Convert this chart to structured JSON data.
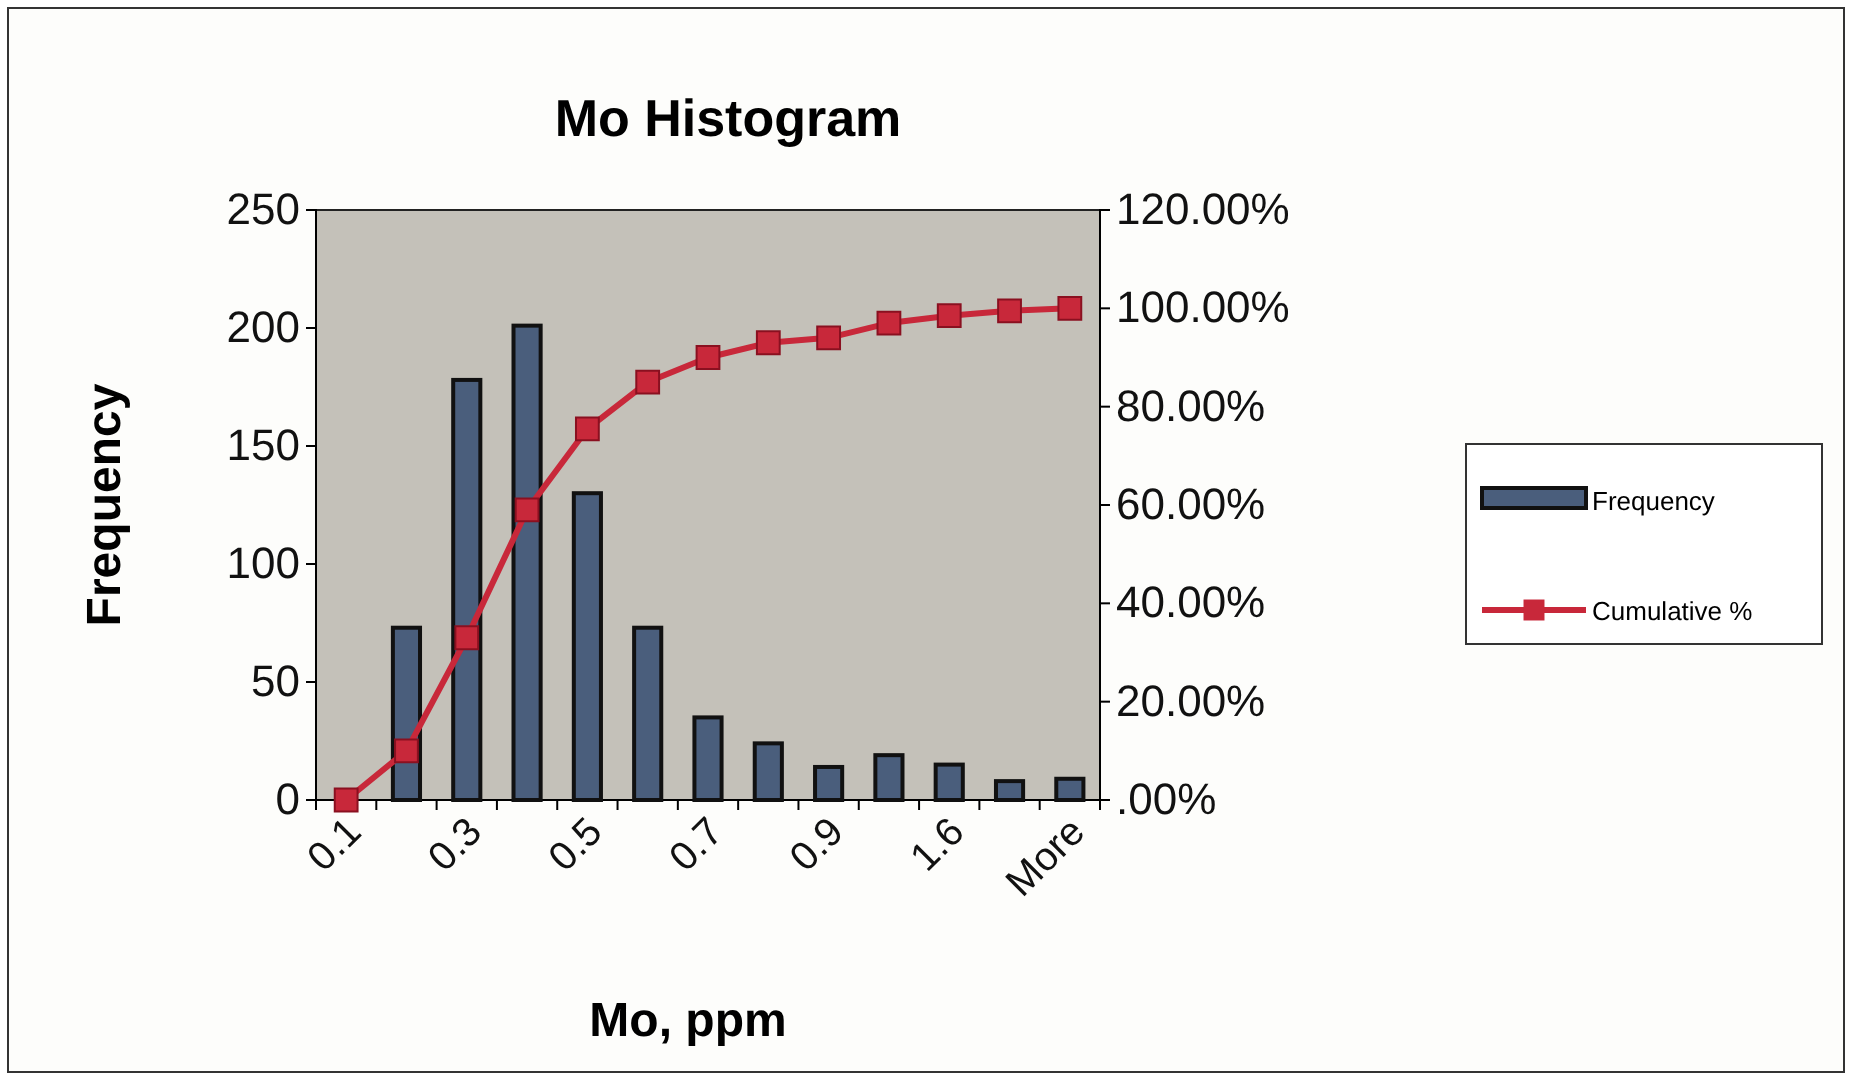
{
  "chart_data": {
    "type": "bar",
    "title": "Mo Histogram",
    "xlabel": "Mo, ppm",
    "ylabel": "Frequency",
    "categories": [
      "0.1",
      null,
      "0.3",
      null,
      "0.5",
      null,
      "0.7",
      null,
      "0.9",
      null,
      "1.6",
      null,
      "More"
    ],
    "series": [
      {
        "name": "Frequency",
        "color": "#4a5e7c",
        "values": [
          0,
          73,
          178,
          201,
          130,
          73,
          35,
          24,
          14,
          19,
          15,
          8,
          9
        ]
      },
      {
        "name": "Cumulative %",
        "type": "line",
        "axis": "y2",
        "color": "#c8283a",
        "marker": "square",
        "values": [
          0,
          10,
          33,
          59,
          75.5,
          85,
          90,
          93,
          94,
          97,
          98.5,
          99.5,
          100
        ]
      }
    ],
    "ylim": [
      0,
      250
    ],
    "yticks": [
      0,
      50,
      100,
      150,
      200,
      250
    ],
    "y2lim": [
      0,
      120
    ],
    "y2ticks": [
      {
        "value": 0,
        "label": ".00%"
      },
      {
        "value": 20,
        "label": "20.00%"
      },
      {
        "value": 40,
        "label": "40.00%"
      },
      {
        "value": 60,
        "label": "60.00%"
      },
      {
        "value": 80,
        "label": "80.00%"
      },
      {
        "value": 100,
        "label": "100.00%"
      },
      {
        "value": 120,
        "label": "120.00%"
      }
    ],
    "grid": false,
    "legend": "right"
  }
}
